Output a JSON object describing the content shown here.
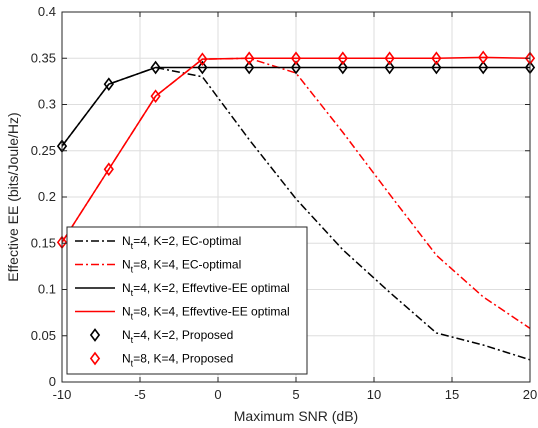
{
  "chart_data": {
    "type": "line",
    "xlabel": "Maximum SNR (dB)",
    "ylabel": "Effective EE (bits/Joule/Hz)",
    "xlim": [
      -10,
      20
    ],
    "ylim": [
      0,
      0.4
    ],
    "xticks": [
      -10,
      -5,
      0,
      5,
      10,
      15,
      20
    ],
    "yticks": [
      0,
      0.05,
      0.1,
      0.15,
      0.2,
      0.25,
      0.3,
      0.35,
      0.4
    ],
    "xtick_labels": [
      "-10",
      "-5",
      "0",
      "5",
      "10",
      "15",
      "20"
    ],
    "ytick_labels": [
      "0",
      "0.05",
      "0.1",
      "0.15",
      "0.2",
      "0.25",
      "0.3",
      "0.35",
      "0.4"
    ],
    "grid": true,
    "legend_position": "bottom-left",
    "series": [
      {
        "name": "N_t=4, K=2, EC-optimal",
        "legend_sub": [
          "N",
          "t",
          "=4, K=2, EC-optimal"
        ],
        "color": "#000000",
        "style": "dashdot",
        "marker": "none",
        "x": [
          -10,
          -7,
          -4,
          -1,
          2,
          5,
          8,
          11,
          14,
          17,
          20
        ],
        "y": [
          0.255,
          0.322,
          0.34,
          0.33,
          0.262,
          0.198,
          0.143,
          0.097,
          0.053,
          0.04,
          0.024
        ]
      },
      {
        "name": "N_t=8, K=4, EC-optimal",
        "legend_sub": [
          "N",
          "t",
          "=8, K=4, EC-optimal"
        ],
        "color": "#ff0000",
        "style": "dashdot",
        "marker": "none",
        "x": [
          -10,
          -7,
          -4,
          -1,
          2,
          5,
          8,
          11,
          14,
          17,
          20
        ],
        "y": [
          0.151,
          0.23,
          0.309,
          0.349,
          0.35,
          0.334,
          0.27,
          0.203,
          0.137,
          0.092,
          0.058
        ]
      },
      {
        "name": "N_t=4, K=2, Effevtive-EE optimal",
        "legend_sub": [
          "N",
          "t",
          "=4, K=2, Effevtive-EE optimal"
        ],
        "color": "#000000",
        "style": "solid",
        "marker": "none",
        "x": [
          -10,
          -7,
          -4,
          -1,
          2,
          5,
          8,
          11,
          14,
          17,
          20
        ],
        "y": [
          0.255,
          0.322,
          0.34,
          0.34,
          0.34,
          0.34,
          0.34,
          0.34,
          0.34,
          0.34,
          0.34
        ]
      },
      {
        "name": "N_t=8, K=4, Effevtive-EE optimal",
        "legend_sub": [
          "N",
          "t",
          "=8, K=4, Effevtive-EE optimal"
        ],
        "color": "#ff0000",
        "style": "solid",
        "marker": "none",
        "x": [
          -10,
          -7,
          -4,
          -1,
          2,
          5,
          8,
          11,
          14,
          17,
          20
        ],
        "y": [
          0.151,
          0.23,
          0.309,
          0.349,
          0.35,
          0.35,
          0.35,
          0.35,
          0.35,
          0.351,
          0.35
        ]
      },
      {
        "name": "N_t=4, K=2, Proposed",
        "legend_sub": [
          "N",
          "t",
          "=4, K=2, Proposed"
        ],
        "color": "#000000",
        "style": "none",
        "marker": "diamond",
        "x": [
          -10,
          -7,
          -4,
          -1,
          2,
          5,
          8,
          11,
          14,
          17,
          20
        ],
        "y": [
          0.255,
          0.322,
          0.34,
          0.34,
          0.34,
          0.34,
          0.34,
          0.34,
          0.34,
          0.34,
          0.34
        ]
      },
      {
        "name": "N_t=8, K=4, Proposed",
        "legend_sub": [
          "N",
          "t",
          "=8, K=4, Proposed"
        ],
        "color": "#ff0000",
        "style": "none",
        "marker": "diamond",
        "x": [
          -10,
          -7,
          -4,
          -1,
          2,
          5,
          8,
          11,
          14,
          17,
          20
        ],
        "y": [
          0.151,
          0.23,
          0.309,
          0.349,
          0.35,
          0.35,
          0.35,
          0.35,
          0.35,
          0.351,
          0.35
        ]
      }
    ]
  }
}
